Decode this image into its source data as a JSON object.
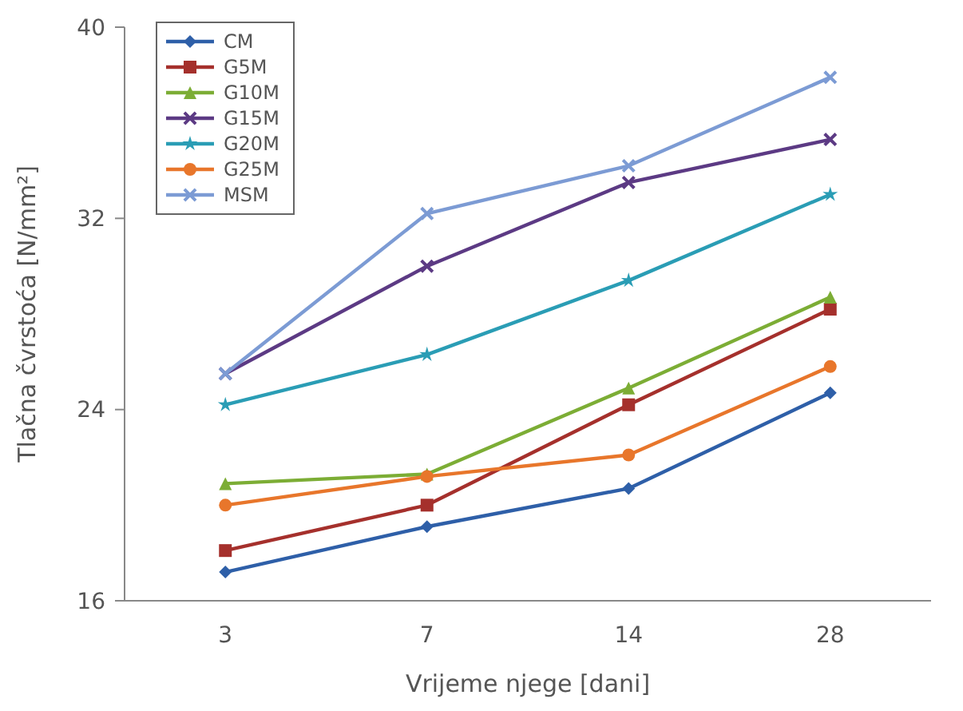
{
  "chart_data": {
    "type": "line",
    "xlabel": "Vrijeme njege [dani]",
    "ylabel": "Tlačna čvrstoća [N/mm²]",
    "categories": [
      "3",
      "7",
      "14",
      "28"
    ],
    "ylim": [
      16,
      40
    ],
    "yticks": [
      16,
      24,
      32,
      40
    ],
    "grid": false,
    "legend": "top left",
    "series": [
      {
        "name": "CM",
        "color": "#2e5fa8",
        "marker": "diamond",
        "values": [
          17.2,
          19.1,
          20.7,
          24.7
        ]
      },
      {
        "name": "G5M",
        "color": "#a5302c",
        "marker": "square",
        "values": [
          18.1,
          20.0,
          24.2,
          28.2
        ]
      },
      {
        "name": "G10M",
        "color": "#7cad35",
        "marker": "triangle",
        "values": [
          20.9,
          21.3,
          24.9,
          28.7
        ]
      },
      {
        "name": "G15M",
        "color": "#5c3a84",
        "marker": "cross",
        "values": [
          25.5,
          30.0,
          33.5,
          35.3
        ]
      },
      {
        "name": "G20M",
        "color": "#2a9db5",
        "marker": "star",
        "values": [
          24.2,
          26.3,
          29.4,
          33.0
        ]
      },
      {
        "name": "G25M",
        "color": "#e8762b",
        "marker": "circle",
        "values": [
          20.0,
          21.2,
          22.1,
          25.8
        ]
      },
      {
        "name": "MSM",
        "color": "#7c9bd4",
        "marker": "cross",
        "values": [
          25.5,
          32.2,
          34.2,
          37.9
        ]
      }
    ]
  }
}
